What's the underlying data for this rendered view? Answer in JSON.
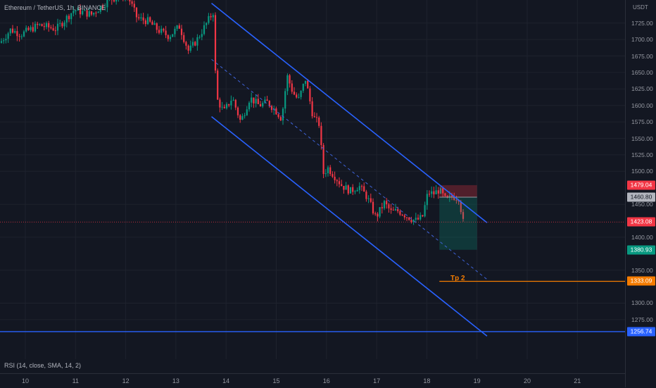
{
  "header": {
    "title": "Ethereum / TetherUS, 1h, BINANCE"
  },
  "indicator": {
    "label": "RSI (14, close, SMA, 14, 2)"
  },
  "annotation": {
    "tp_label": "Tp 2"
  },
  "yaxis": {
    "currency": "USDT",
    "ticks": [
      "1725.00",
      "1700.00",
      "1675.00",
      "1650.00",
      "1625.00",
      "1600.00",
      "1575.00",
      "1550.00",
      "1525.00",
      "1500.00",
      "1450.00",
      "1400.00",
      "1350.00",
      "1300.00",
      "1275.00"
    ]
  },
  "price_badges": [
    {
      "name": "stop-loss-badge",
      "label": "1479.04",
      "value": 1479.04,
      "color": "#f23645"
    },
    {
      "name": "entry-price-badge",
      "label": "1460.80",
      "value": 1460.8,
      "color": "#b2b5be"
    },
    {
      "name": "last-price-badge",
      "label": "1423.08",
      "value": 1423.08,
      "color": "#f23645"
    },
    {
      "name": "take-profit-badge",
      "label": "1380.93",
      "value": 1380.93,
      "color": "#089981"
    },
    {
      "name": "tp2-badge",
      "label": "1333.09",
      "value": 1333.09,
      "color": "#f57c00"
    },
    {
      "name": "support-line-badge",
      "label": "1256.74",
      "value": 1256.74,
      "color": "#2962ff"
    }
  ],
  "xaxis": {
    "ticks": [
      "10",
      "11",
      "12",
      "13",
      "14",
      "15",
      "16",
      "17",
      "18",
      "19",
      "20",
      "21"
    ]
  },
  "chart_data": {
    "type": "candlestick",
    "ylim": [
      1215,
      1760
    ],
    "lines": {
      "channel_upper": [
        [
          13.71,
          1755
        ],
        [
          19.2,
          1422
        ]
      ],
      "channel_lower": [
        [
          13.71,
          1583
        ],
        [
          19.2,
          1250
        ]
      ],
      "channel_mid": [
        [
          13.71,
          1670
        ],
        [
          19.2,
          1336
        ]
      ],
      "tp2": 1333.09,
      "support": 1256.74,
      "last_price": 1423.08
    },
    "position": {
      "entry": 1460.8,
      "stop": 1479.04,
      "target": 1380.93,
      "start": 18.25,
      "end": 19.0
    },
    "up_color": "#089981",
    "down_color": "#f23645"
  }
}
